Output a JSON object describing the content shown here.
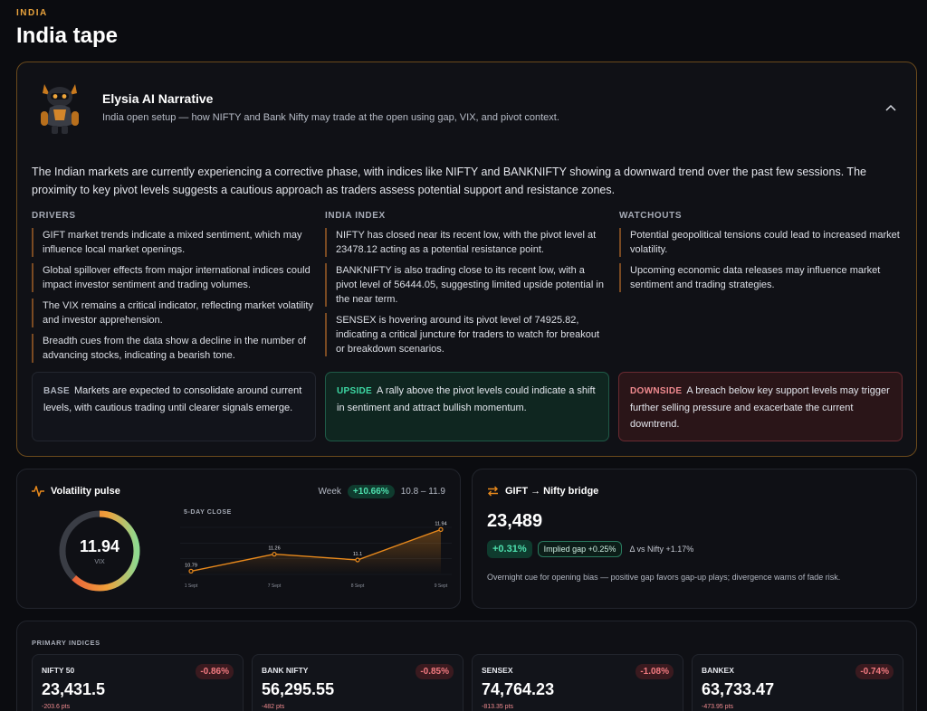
{
  "header": {
    "eyebrow": "INDIA",
    "title": "India tape"
  },
  "narrative": {
    "title": "Elysia AI Narrative",
    "subtitle": "India open setup — how NIFTY and Bank Nifty may trade at the open using gap, VIX, and pivot context.",
    "lead": "The Indian markets are currently experiencing a corrective phase, with indices like NIFTY and BANKNIFTY showing a downward trend over the past few sessions. The proximity to key pivot levels suggests a cautious approach as traders assess potential support and resistance zones.",
    "drivers": {
      "heading": "DRIVERS",
      "items": [
        "GIFT market trends indicate a mixed sentiment, which may influence local market openings.",
        "Global spillover effects from major international indices could impact investor sentiment and trading volumes.",
        "The VIX remains a critical indicator, reflecting market volatility and investor apprehension.",
        "Breadth cues from the data show a decline in the number of advancing stocks, indicating a bearish tone."
      ]
    },
    "india_index": {
      "heading": "INDIA INDEX",
      "items": [
        "NIFTY has closed near its recent low, with the pivot level at 23478.12 acting as a potential resistance point.",
        "BANKNIFTY is also trading close to its recent low, with a pivot level of 56444.05, suggesting limited upside potential in the near term.",
        "SENSEX is hovering around its pivot level of 74925.82, indicating a critical juncture for traders to watch for breakout or breakdown scenarios."
      ]
    },
    "watchouts": {
      "heading": "WATCHOUTS",
      "items": [
        "Potential geopolitical tensions could lead to increased market volatility.",
        "Upcoming economic data releases may influence market sentiment and trading strategies."
      ]
    },
    "scenarios": {
      "base": {
        "tag": "BASE",
        "text": "Markets are expected to consolidate around current levels, with cautious trading until clearer signals emerge."
      },
      "upside": {
        "tag": "UPSIDE",
        "text": "A rally above the pivot levels could indicate a shift in sentiment and attract bullish momentum."
      },
      "downside": {
        "tag": "DOWNSIDE",
        "text": "A breach below key support levels may trigger further selling pressure and exacerbate the current downtrend."
      }
    }
  },
  "volatility": {
    "title": "Volatility pulse",
    "week_label": "Week",
    "week_change": "+10.66%",
    "week_range": "10.8 – 11.9",
    "vix_value": "11.94",
    "vix_label": "VIX",
    "gauge_fraction": 0.62,
    "spark_title": "5-DAY CLOSE"
  },
  "chart_data": {
    "type": "line",
    "x": [
      "1 Sept",
      "7 Sept",
      "8 Sept",
      "9 Sept"
    ],
    "values": [
      10.79,
      11.26,
      11.1,
      11.94
    ],
    "labels": [
      "10.79",
      "11.26",
      "11.1",
      "11.94"
    ],
    "title": "5-DAY CLOSE",
    "color": "#e8891c"
  },
  "gift": {
    "title": "GIFT → Nifty bridge",
    "value": "23,489",
    "change": "+0.31%",
    "implied_gap": "Implied gap +0.25%",
    "delta": "Δ vs Nifty +1.17%",
    "note": "Overnight cue for opening bias — positive gap favors gap-up plays; divergence warns of fade risk."
  },
  "indices": {
    "title": "PRIMARY INDICES",
    "items": [
      {
        "name": "NIFTY 50",
        "value": "23,431.5",
        "change": "-0.86%",
        "pts": "-203.6 pts"
      },
      {
        "name": "BANK NIFTY",
        "value": "56,295.55",
        "change": "-0.85%",
        "pts": "-482 pts"
      },
      {
        "name": "SENSEX",
        "value": "74,764.23",
        "change": "-1.08%",
        "pts": "-813.35 pts"
      },
      {
        "name": "BANKEX",
        "value": "63,733.47",
        "change": "-0.74%",
        "pts": "-473.95 pts"
      }
    ]
  },
  "colors": {
    "accent": "#e8a23c",
    "positive": "#4ee0ae",
    "negative": "#f27a80"
  }
}
